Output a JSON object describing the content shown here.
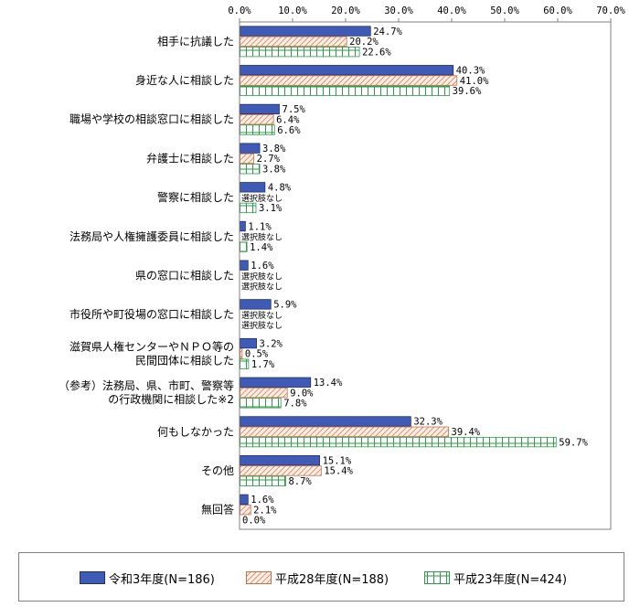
{
  "chart_data": {
    "type": "bar",
    "orientation": "horizontal",
    "title": "",
    "xlabel": "",
    "ylabel": "",
    "xlim": [
      0,
      70
    ],
    "x_ticks": [
      "0.0%",
      "10.0%",
      "20.0%",
      "30.0%",
      "40.0%",
      "50.0%",
      "60.0%",
      "70.0%"
    ],
    "tick_values": [
      0,
      10,
      20,
      30,
      40,
      50,
      60,
      70
    ],
    "grid": false,
    "legend_position": "bottom",
    "categories": [
      [
        "相手に抗議した"
      ],
      [
        "身近な人に相談した"
      ],
      [
        "職場や学校の相談窓口に相談した"
      ],
      [
        "弁護士に相談した"
      ],
      [
        "警察に相談した"
      ],
      [
        "法務局や人権擁護委員に相談した"
      ],
      [
        "県の窓口に相談した"
      ],
      [
        "市役所や町役場の窓口に相談した"
      ],
      [
        "滋賀県人権センターやＮＰＯ等の",
        "民間団体に相談した"
      ],
      [
        "（参考）法務局、県、市町、警察等",
        "の行政機関に相談した※2"
      ],
      [
        "何もしなかった"
      ],
      [
        "その他"
      ],
      [
        "無回答"
      ]
    ],
    "series": [
      {
        "name": "令和3年度(N=186)",
        "color": "#3f5bb5",
        "pattern": "solid",
        "values": [
          24.7,
          40.3,
          7.5,
          3.8,
          4.8,
          1.1,
          1.6,
          5.9,
          3.2,
          13.4,
          32.3,
          15.1,
          1.6
        ],
        "labels": [
          "24.7%",
          "40.3%",
          "7.5%",
          "3.8%",
          "4.8%",
          "1.1%",
          "1.6%",
          "5.9%",
          "3.2%",
          "13.4%",
          "32.3%",
          "15.1%",
          "1.6%"
        ]
      },
      {
        "name": "平成28年度(N=188)",
        "color": "#e8926a",
        "pattern": "hatch",
        "values": [
          20.2,
          41.0,
          6.4,
          2.7,
          null,
          null,
          null,
          null,
          0.5,
          9.0,
          39.4,
          15.4,
          2.1
        ],
        "labels": [
          "20.2%",
          "41.0%",
          "6.4%",
          "2.7%",
          "選択肢なし",
          "選択肢なし",
          "選択肢なし",
          "選択肢なし",
          "0.5%",
          "9.0%",
          "39.4%",
          "15.4%",
          "2.1%"
        ]
      },
      {
        "name": "平成23年度(N=424)",
        "color": "#2e9a4a",
        "pattern": "grid",
        "values": [
          22.6,
          39.6,
          6.6,
          3.8,
          3.1,
          1.4,
          null,
          null,
          1.7,
          7.8,
          59.7,
          8.7,
          0.0
        ],
        "labels": [
          "22.6%",
          "39.6%",
          "6.6%",
          "3.8%",
          "3.1%",
          "1.4%",
          "選択肢なし",
          "選択肢なし",
          "1.7%",
          "7.8%",
          "59.7%",
          "8.7%",
          "0.0%"
        ]
      }
    ]
  }
}
